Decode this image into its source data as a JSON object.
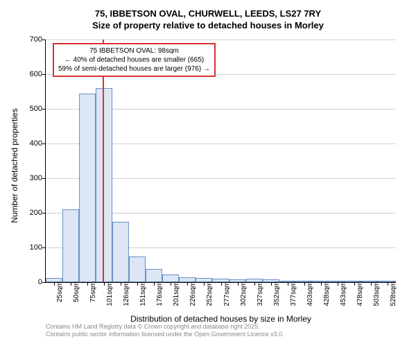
{
  "title": "75, IBBETSON OVAL, CHURWELL, LEEDS, LS27 7RY",
  "subtitle": "Size of property relative to detached houses in Morley",
  "chart": {
    "type": "histogram",
    "y_label": "Number of detached properties",
    "x_label": "Distribution of detached houses by size in Morley",
    "ylim": [
      0,
      700
    ],
    "ytick_step": 100,
    "x_categories": [
      "25sqm",
      "50sqm",
      "75sqm",
      "101sqm",
      "126sqm",
      "151sqm",
      "176sqm",
      "201sqm",
      "226sqm",
      "252sqm",
      "277sqm",
      "302sqm",
      "327sqm",
      "352sqm",
      "377sqm",
      "403sqm",
      "428sqm",
      "453sqm",
      "478sqm",
      "503sqm",
      "528sqm"
    ],
    "values": [
      12,
      210,
      545,
      560,
      175,
      75,
      38,
      22,
      15,
      12,
      10,
      8,
      10,
      8,
      5,
      4,
      3,
      2,
      2,
      1,
      1
    ],
    "bar_fill": "#dce6f5",
    "bar_border": "#6a8fc9",
    "grid_color": "#d0d0d0",
    "background_color": "#ffffff",
    "marker_position_sqm": 98,
    "marker_color": "#d93030",
    "annotation": {
      "line1": "75 IBBETSON OVAL: 98sqm",
      "line2": "← 40% of detached houses are smaller (665)",
      "line3": "59% of semi-detached houses are larger (976) →"
    }
  },
  "footer": {
    "line1": "Contains HM Land Registry data © Crown copyright and database right 2025.",
    "line2": "Contains public sector information licensed under the Open Government Licence v3.0."
  }
}
